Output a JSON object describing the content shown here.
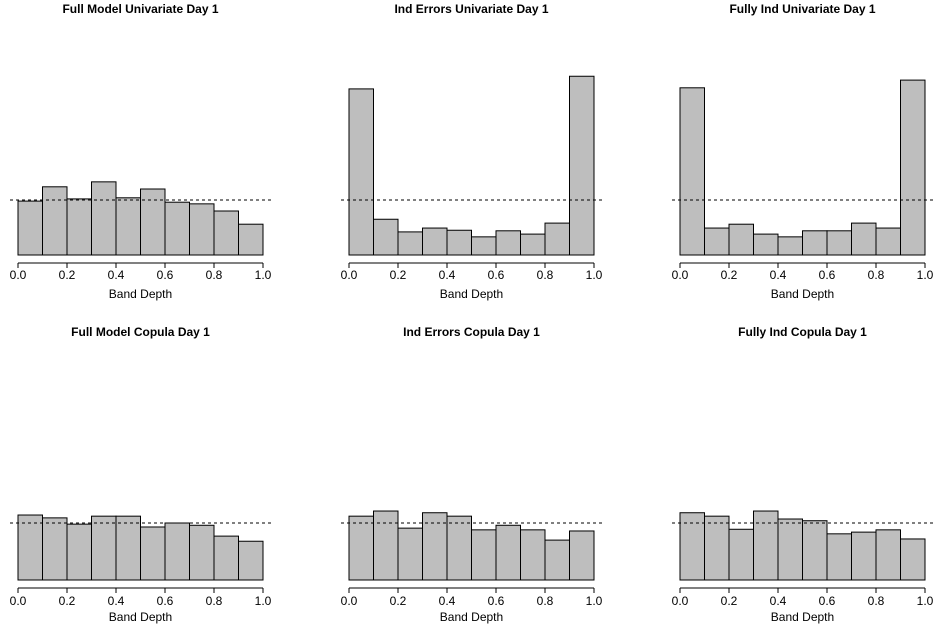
{
  "chart_data": [
    {
      "type": "histogram",
      "title": "Full Model Univariate Day 1",
      "xlabel": "Band Depth",
      "bins": [
        0,
        0.1,
        0.2,
        0.3,
        0.4,
        0.5,
        0.6,
        0.7,
        0.8,
        0.9,
        1
      ],
      "values": [
        0.98,
        1.24,
        1.02,
        1.33,
        1.04,
        1.2,
        0.96,
        0.93,
        0.8,
        0.56
      ],
      "color": "#bebebe",
      "hline": 1,
      "xlim": [
        0,
        1
      ],
      "ylim": [
        0,
        3.9
      ],
      "xticks": [
        {
          "value": 0,
          "label": "0.0"
        },
        0.2,
        0.4,
        0.6,
        0.8,
        {
          "value": 1,
          "label": "1.0"
        }
      ]
    },
    {
      "type": "histogram",
      "title": "Ind Errors Univariate Day 1",
      "xlabel": "Band Depth",
      "bins": [
        0,
        0.1,
        0.2,
        0.3,
        0.4,
        0.5,
        0.6,
        0.7,
        0.8,
        0.9,
        1
      ],
      "values": [
        3.02,
        0.65,
        0.42,
        0.49,
        0.45,
        0.33,
        0.44,
        0.38,
        0.58,
        3.25
      ],
      "color": "#bebebe",
      "hline": 1,
      "xlim": [
        0,
        1
      ],
      "ylim": [
        0,
        3.9
      ],
      "xticks": [
        {
          "value": 0,
          "label": "0.0"
        },
        0.2,
        0.4,
        0.6,
        0.8,
        {
          "value": 1,
          "label": "1.0"
        }
      ]
    },
    {
      "type": "histogram",
      "title": "Fully Ind Univariate Day 1",
      "xlabel": "Band Depth",
      "bins": [
        0,
        0.1,
        0.2,
        0.3,
        0.4,
        0.5,
        0.6,
        0.7,
        0.8,
        0.9,
        1
      ],
      "values": [
        3.04,
        0.49,
        0.56,
        0.38,
        0.33,
        0.44,
        0.44,
        0.58,
        0.49,
        3.18
      ],
      "color": "#bebebe",
      "hline": 1,
      "xlim": [
        0,
        1
      ],
      "ylim": [
        0,
        3.9
      ],
      "xticks": [
        {
          "value": 0,
          "label": "0.0"
        },
        0.2,
        0.4,
        0.6,
        0.8,
        {
          "value": 1,
          "label": "1.0"
        }
      ]
    },
    {
      "type": "histogram",
      "title": "Full Model Copula Day 1",
      "xlabel": "Band Depth",
      "bins": [
        0,
        0.1,
        0.2,
        0.3,
        0.4,
        0.5,
        0.6,
        0.7,
        0.8,
        0.9,
        1
      ],
      "values": [
        1.14,
        1.09,
        0.98,
        1.12,
        1.12,
        0.93,
        1.0,
        0.96,
        0.77,
        0.68
      ],
      "color": "#bebebe",
      "hline": 1,
      "xlim": [
        0,
        1
      ],
      "ylim": [
        0,
        4
      ],
      "xticks": [
        {
          "value": 0,
          "label": "0.0"
        },
        0.2,
        0.4,
        0.6,
        0.8,
        {
          "value": 1,
          "label": "1.0"
        }
      ]
    },
    {
      "type": "histogram",
      "title": "Ind Errors Copula Day 1",
      "xlabel": "Band Depth",
      "bins": [
        0,
        0.1,
        0.2,
        0.3,
        0.4,
        0.5,
        0.6,
        0.7,
        0.8,
        0.9,
        1
      ],
      "values": [
        1.12,
        1.21,
        0.91,
        1.18,
        1.12,
        0.88,
        0.96,
        0.88,
        0.7,
        0.86
      ],
      "color": "#bebebe",
      "hline": 1,
      "xlim": [
        0,
        1
      ],
      "ylim": [
        0,
        4
      ],
      "xticks": [
        {
          "value": 0,
          "label": "0.0"
        },
        0.2,
        0.4,
        0.6,
        0.8,
        {
          "value": 1,
          "label": "1.0"
        }
      ]
    },
    {
      "type": "histogram",
      "title": "Fully Ind Copula Day 1",
      "xlabel": "Band Depth",
      "bins": [
        0,
        0.1,
        0.2,
        0.3,
        0.4,
        0.5,
        0.6,
        0.7,
        0.8,
        0.9,
        1
      ],
      "values": [
        1.18,
        1.12,
        0.89,
        1.21,
        1.07,
        1.04,
        0.81,
        0.84,
        0.88,
        0.72
      ],
      "color": "#bebebe",
      "hline": 1,
      "xlim": [
        0,
        1
      ],
      "ylim": [
        0,
        4
      ],
      "xticks": [
        {
          "value": 0,
          "label": "0.0"
        },
        0.2,
        0.4,
        0.6,
        0.8,
        {
          "value": 1,
          "label": "1.0"
        }
      ]
    }
  ]
}
